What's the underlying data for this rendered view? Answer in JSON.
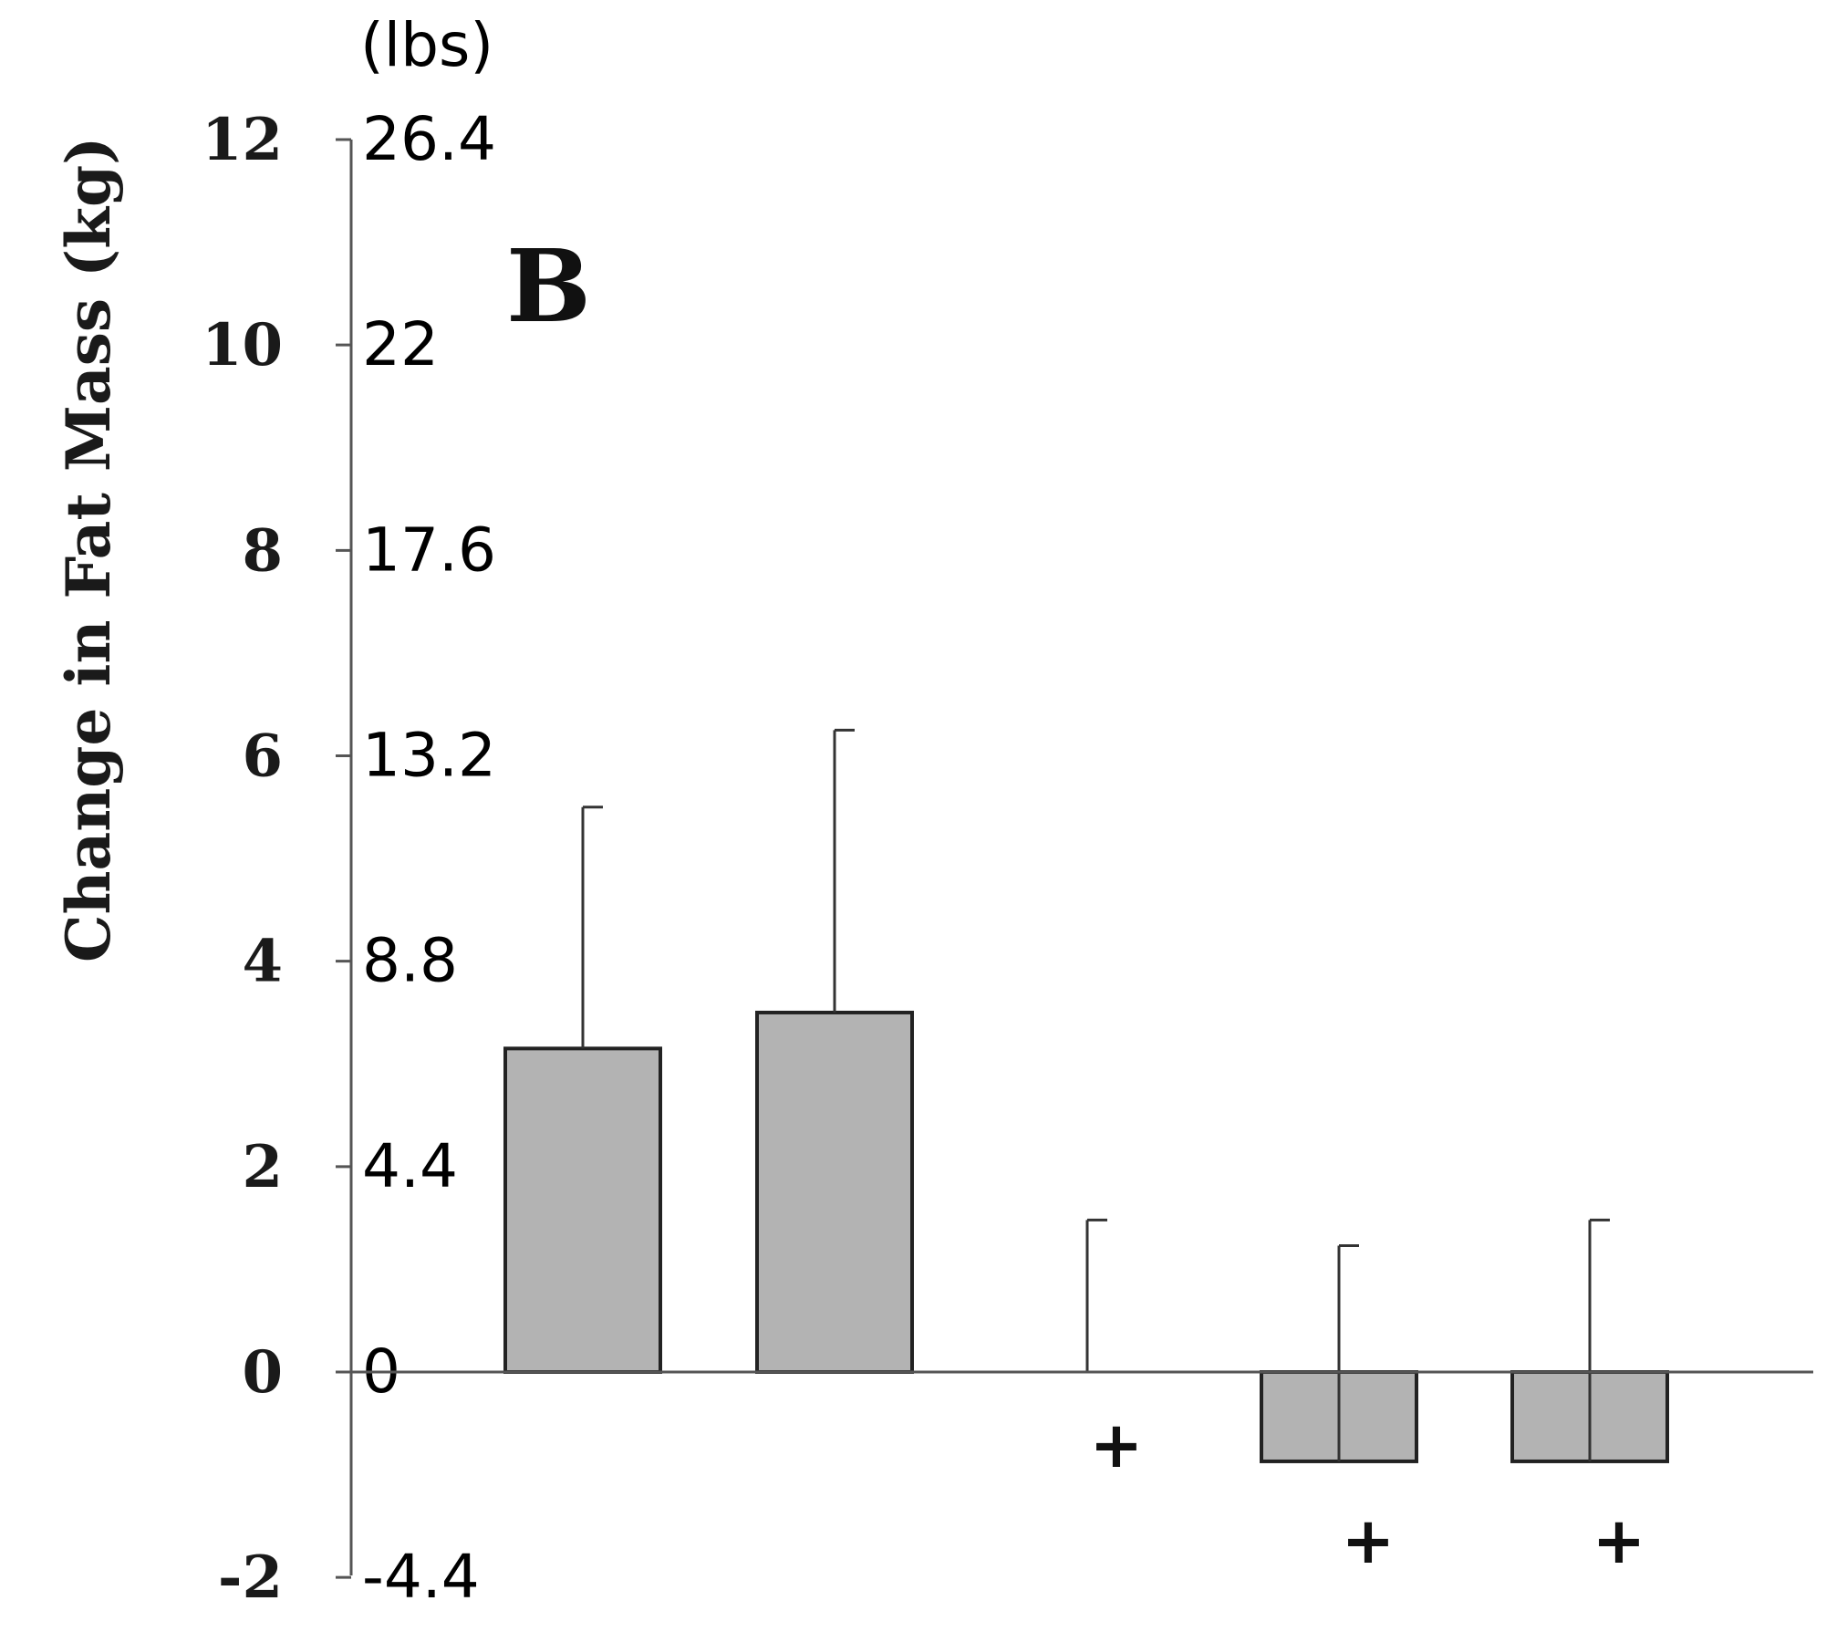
{
  "chart_data": {
    "type": "bar",
    "panel_label": "B",
    "ylabel": "Change in Fat Mass (kg)",
    "secondary_axis_unit": "(lbs)",
    "ylim": [
      -2,
      12
    ],
    "yticks_kg": [
      "12",
      "10",
      "8",
      "6",
      "4",
      "2",
      "0",
      "-2"
    ],
    "yticks_lbs": [
      "26.4",
      "22",
      "17.6",
      "13.2",
      "8.8",
      "4.4",
      "0",
      "-4.4"
    ],
    "categories": [
      "",
      "",
      "",
      "",
      ""
    ],
    "values": [
      3.15,
      3.5,
      0.0,
      -0.87,
      -0.87
    ],
    "error_upper": [
      5.5,
      6.25,
      1.48,
      1.23,
      1.48
    ],
    "markers": [
      "",
      "",
      "+",
      "+",
      "+"
    ],
    "bar_color": "#b3b3b3"
  }
}
